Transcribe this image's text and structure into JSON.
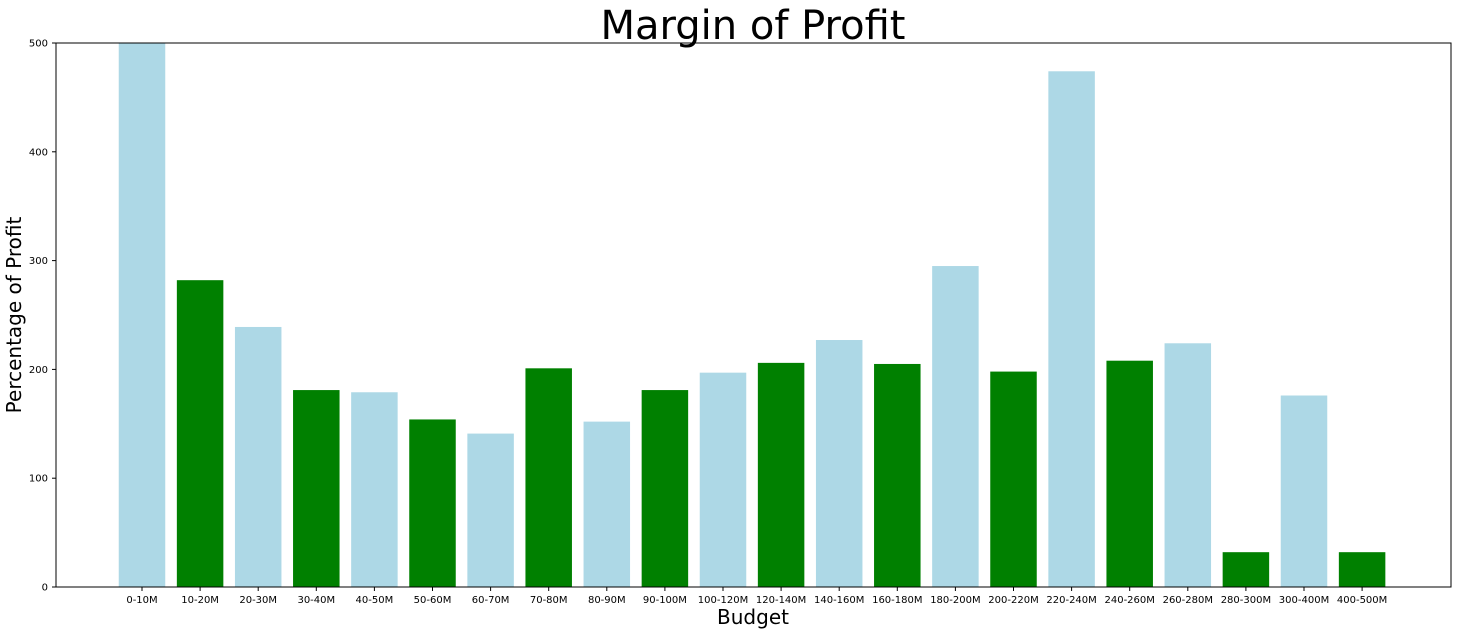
{
  "chart_data": {
    "type": "bar",
    "title": "Margin of Profit",
    "xlabel": "Budget",
    "ylabel": "Percentage of Profit",
    "ylim": [
      0,
      500
    ],
    "yticks": [
      0,
      100,
      200,
      300,
      400,
      500
    ],
    "categories": [
      "0-10M",
      "10-20M",
      "20-30M",
      "30-40M",
      "40-50M",
      "50-60M",
      "60-70M",
      "70-80M",
      "80-90M",
      "90-100M",
      "100-120M",
      "120-140M",
      "140-160M",
      "160-180M",
      "180-200M",
      "200-220M",
      "220-240M",
      "240-260M",
      "260-280M",
      "280-300M",
      "300-400M",
      "400-500M"
    ],
    "values": [
      500,
      282,
      239,
      181,
      179,
      154,
      141,
      201,
      152,
      181,
      197,
      206,
      227,
      205,
      295,
      198,
      474,
      208,
      224,
      32,
      176,
      32
    ],
    "bar_colors": [
      "#add8e6",
      "#008000"
    ],
    "grid": false,
    "legend": "none"
  }
}
